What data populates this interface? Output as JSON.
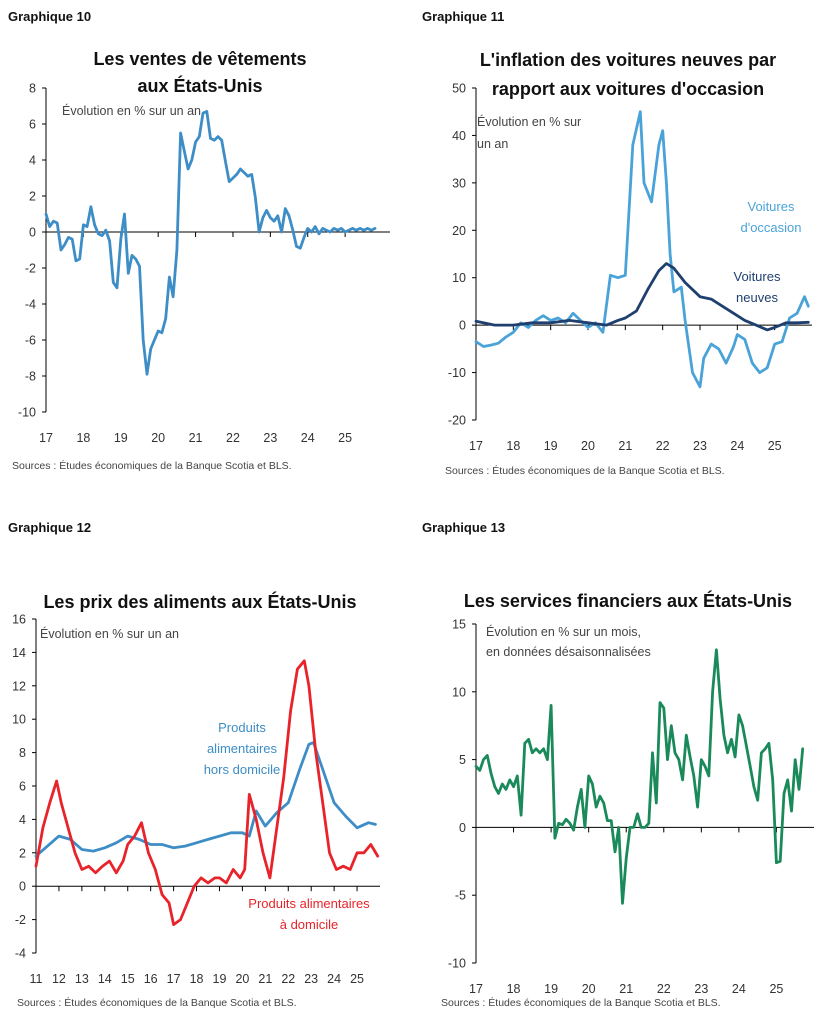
{
  "chart_data": [
    {
      "id": "g10",
      "type": "line",
      "number": "Graphique 10",
      "title": [
        "Les ventes de vêtements",
        "aux États-Unis"
      ],
      "note": [
        "Évolution en % sur un an"
      ],
      "source": "Sources : Études économiques de la Banque Scotia et BLS.",
      "ylim": [
        -10,
        8
      ],
      "yticks": [
        8,
        6,
        4,
        2,
        0,
        -2,
        -4,
        -6,
        -8,
        -10
      ],
      "xlim": [
        2017,
        2026.2
      ],
      "xticks": [
        "17",
        "18",
        "19",
        "20",
        "21",
        "22",
        "23",
        "24",
        "25"
      ],
      "series": [
        {
          "color": "#3d8dc6",
          "x": [
            2017.0,
            2017.1,
            2017.2,
            2017.3,
            2017.4,
            2017.5,
            2017.6,
            2017.7,
            2017.8,
            2017.9,
            2018.0,
            2018.1,
            2018.2,
            2018.3,
            2018.4,
            2018.5,
            2018.6,
            2018.7,
            2018.8,
            2018.9,
            2019.0,
            2019.1,
            2019.2,
            2019.3,
            2019.4,
            2019.5,
            2019.6,
            2019.7,
            2019.8,
            2019.9,
            2020.0,
            2020.1,
            2020.2,
            2020.3,
            2020.4,
            2020.5,
            2020.6,
            2020.7,
            2020.8,
            2020.9,
            2021.0,
            2021.1,
            2021.2,
            2021.3,
            2021.4,
            2021.5,
            2021.6,
            2021.7,
            2021.8,
            2021.9,
            2022.0,
            2022.1,
            2022.2,
            2022.3,
            2022.4,
            2022.5,
            2022.6,
            2022.7,
            2022.8,
            2022.9,
            2023.0,
            2023.1,
            2023.2,
            2023.3,
            2023.4,
            2023.5,
            2023.6,
            2023.7,
            2023.8,
            2023.9,
            2024.0,
            2024.1,
            2024.2,
            2024.3,
            2024.4,
            2024.5,
            2024.6,
            2024.7,
            2024.8,
            2024.9,
            2025.0,
            2025.1,
            2025.2,
            2025.3,
            2025.4,
            2025.5,
            2025.6,
            2025.7,
            2025.8
          ],
          "values": [
            1.0,
            0.3,
            0.6,
            0.5,
            -1.0,
            -0.7,
            -0.3,
            -0.4,
            -1.6,
            -1.5,
            0.4,
            0.3,
            1.4,
            0.4,
            -0.1,
            -0.2,
            0.1,
            -0.5,
            -2.8,
            -3.1,
            -0.4,
            1.0,
            -2.3,
            -1.3,
            -1.5,
            -1.9,
            -6.0,
            -7.9,
            -6.5,
            -6.0,
            -5.5,
            -5.6,
            -4.8,
            -2.5,
            -3.6,
            -1.0,
            5.5,
            4.5,
            3.5,
            4.0,
            5.0,
            5.3,
            6.6,
            6.7,
            5.2,
            5.1,
            5.3,
            5.1,
            3.9,
            2.8,
            3.0,
            3.2,
            3.5,
            3.3,
            3.1,
            3.2,
            1.9,
            0.0,
            0.8,
            1.2,
            0.8,
            0.6,
            0.9,
            0.0,
            1.3,
            0.9,
            0.1,
            -0.8,
            -0.9,
            -0.3,
            0.2,
            0.0,
            0.3,
            -0.1,
            0.2,
            0.1,
            0.0,
            0.2,
            0.1,
            0.2,
            0.0,
            0.1,
            0.2,
            0.1,
            0.2,
            0.1,
            0.2,
            0.1,
            0.2
          ]
        }
      ],
      "labels": []
    },
    {
      "id": "g11",
      "type": "line",
      "number": "Graphique 11",
      "title": [
        "L'inflation des voitures neuves par",
        "rapport aux voitures d'occasion"
      ],
      "note": [
        "Évolution en % sur",
        "un an"
      ],
      "source": "Sources : Études économiques de la Banque Scotia et BLS.",
      "ylim": [
        -20,
        50
      ],
      "yticks": [
        50,
        40,
        30,
        20,
        10,
        0,
        -10,
        -20
      ],
      "xlim": [
        2017,
        2026.0
      ],
      "xticks": [
        "17",
        "18",
        "19",
        "20",
        "21",
        "22",
        "23",
        "24",
        "25"
      ],
      "series": [
        {
          "name": "Voitures d'occasion",
          "color": "#4aa3d8",
          "x": [
            2017.0,
            2017.2,
            2017.4,
            2017.6,
            2017.8,
            2018.0,
            2018.2,
            2018.4,
            2018.6,
            2018.8,
            2019.0,
            2019.2,
            2019.4,
            2019.6,
            2019.8,
            2020.0,
            2020.2,
            2020.4,
            2020.6,
            2020.8,
            2021.0,
            2021.2,
            2021.4,
            2021.5,
            2021.7,
            2021.9,
            2022.0,
            2022.1,
            2022.2,
            2022.3,
            2022.5,
            2022.6,
            2022.8,
            2023.0,
            2023.1,
            2023.3,
            2023.5,
            2023.7,
            2023.9,
            2024.0,
            2024.2,
            2024.4,
            2024.6,
            2024.8,
            2025.0,
            2025.2,
            2025.4,
            2025.6,
            2025.8,
            2025.9
          ],
          "values": [
            -3.5,
            -4.5,
            -4.2,
            -3.8,
            -2.5,
            -1.5,
            0.5,
            -0.5,
            1.0,
            2.0,
            1.0,
            1.5,
            0.5,
            2.5,
            1.0,
            -0.5,
            0.5,
            -1.5,
            10.5,
            10.0,
            10.5,
            38.0,
            45.0,
            30.0,
            26.0,
            38.0,
            41.0,
            30.0,
            15.0,
            7.0,
            8.0,
            1.0,
            -10.0,
            -13.0,
            -7.0,
            -4.0,
            -5.0,
            -8.0,
            -4.5,
            -2.0,
            -3.0,
            -8.0,
            -10.0,
            -9.0,
            -4.0,
            -3.5,
            1.5,
            2.5,
            6.0,
            4.0
          ]
        },
        {
          "name": "Voitures neuves",
          "color": "#1f3f6e",
          "x": [
            2017.0,
            2017.5,
            2018.0,
            2018.5,
            2019.0,
            2019.5,
            2020.0,
            2020.5,
            2020.8,
            2021.0,
            2021.3,
            2021.6,
            2021.9,
            2022.1,
            2022.3,
            2022.6,
            2023.0,
            2023.3,
            2023.6,
            2023.9,
            2024.2,
            2024.5,
            2024.8,
            2025.0,
            2025.3,
            2025.6,
            2025.9
          ],
          "values": [
            0.8,
            0.0,
            0.0,
            0.5,
            0.5,
            1.0,
            0.5,
            0.0,
            1.0,
            1.5,
            3.0,
            7.5,
            11.5,
            13.0,
            12.0,
            9.0,
            6.0,
            5.5,
            4.0,
            2.5,
            1.0,
            0.0,
            -1.0,
            -0.5,
            0.5,
            0.5,
            0.6
          ]
        }
      ],
      "labels": [
        {
          "lines": [
            "Voitures",
            "d'occasion"
          ],
          "color": "#4aa3d8"
        },
        {
          "lines": [
            "Voitures",
            "neuves"
          ],
          "color": "#1f3f6e"
        }
      ]
    },
    {
      "id": "g12",
      "type": "line",
      "number": "Graphique 12",
      "title": [
        "Les prix des aliments aux États-Unis"
      ],
      "note": [
        "Évolution en % sur un an"
      ],
      "source": "Sources : Études économiques de la Banque Scotia et BLS.",
      "ylim": [
        -4,
        16
      ],
      "yticks": [
        16,
        14,
        12,
        10,
        8,
        6,
        4,
        2,
        0,
        -2,
        -4
      ],
      "xlim": [
        2011,
        2026.0
      ],
      "xticks": [
        "11",
        "12",
        "13",
        "14",
        "15",
        "16",
        "17",
        "18",
        "19",
        "20",
        "21",
        "22",
        "23",
        "24",
        "25"
      ],
      "series": [
        {
          "name": "Produits alimentaires hors domicile",
          "color": "#3d8dc6",
          "x": [
            2011.0,
            2011.5,
            2012.0,
            2012.5,
            2013.0,
            2013.5,
            2014.0,
            2014.5,
            2015.0,
            2015.5,
            2016.0,
            2016.5,
            2017.0,
            2017.5,
            2018.0,
            2018.5,
            2019.0,
            2019.5,
            2020.0,
            2020.3,
            2020.6,
            2021.0,
            2021.5,
            2022.0,
            2022.5,
            2022.9,
            2023.1,
            2023.5,
            2024.0,
            2024.5,
            2025.0,
            2025.5,
            2025.8
          ],
          "values": [
            1.8,
            2.4,
            3.0,
            2.8,
            2.2,
            2.1,
            2.3,
            2.6,
            3.0,
            2.8,
            2.5,
            2.5,
            2.3,
            2.4,
            2.6,
            2.8,
            3.0,
            3.2,
            3.2,
            3.0,
            4.5,
            3.6,
            4.4,
            5.0,
            7.0,
            8.5,
            8.6,
            7.0,
            5.0,
            4.2,
            3.5,
            3.8,
            3.7
          ]
        },
        {
          "name": "Produits alimentaires à domicile",
          "color": "#e8232a",
          "x": [
            2011.0,
            2011.3,
            2011.6,
            2011.9,
            2012.1,
            2012.4,
            2012.7,
            2013.0,
            2013.3,
            2013.6,
            2013.9,
            2014.2,
            2014.5,
            2014.8,
            2015.0,
            2015.3,
            2015.6,
            2015.9,
            2016.2,
            2016.5,
            2016.8,
            2017.0,
            2017.3,
            2017.6,
            2017.9,
            2018.2,
            2018.5,
            2018.8,
            2019.0,
            2019.3,
            2019.6,
            2019.9,
            2020.1,
            2020.3,
            2020.6,
            2020.9,
            2021.2,
            2021.5,
            2021.8,
            2022.1,
            2022.4,
            2022.7,
            2022.9,
            2023.2,
            2023.5,
            2023.8,
            2024.1,
            2024.4,
            2024.7,
            2025.0,
            2025.3,
            2025.6,
            2025.9
          ],
          "values": [
            1.2,
            3.5,
            5.0,
            6.3,
            5.0,
            3.5,
            2.0,
            1.0,
            1.2,
            0.8,
            1.2,
            1.5,
            0.8,
            1.5,
            2.5,
            3.0,
            3.8,
            2.0,
            1.0,
            -0.5,
            -1.0,
            -2.3,
            -2.0,
            -1.0,
            0.0,
            0.5,
            0.2,
            0.5,
            0.5,
            0.2,
            1.0,
            0.5,
            1.0,
            5.5,
            4.0,
            2.0,
            0.5,
            3.5,
            6.5,
            10.5,
            13.0,
            13.5,
            12.0,
            8.0,
            5.0,
            2.0,
            1.0,
            1.2,
            1.0,
            2.0,
            2.0,
            2.5,
            1.8
          ]
        }
      ],
      "labels": [
        {
          "lines": [
            "Produits",
            "alimentaires",
            "hors domicile"
          ],
          "color": "#3d8dc6"
        },
        {
          "lines": [
            "Produits alimentaires",
            "à domicile"
          ],
          "color": "#e8232a"
        }
      ]
    },
    {
      "id": "g13",
      "type": "line",
      "number": "Graphique 13",
      "title": [
        "Les services financiers aux États-Unis"
      ],
      "note": [
        "Évolution en % sur un mois,",
        "en données désaisonnalisées"
      ],
      "source": "Sources : Études économiques de la Banque Scotia et BLS.",
      "ylim": [
        -10,
        15
      ],
      "yticks": [
        15,
        10,
        5,
        0,
        -5,
        -10
      ],
      "xlim": [
        2017,
        2026.0
      ],
      "xticks": [
        "17",
        "18",
        "19",
        "20",
        "21",
        "22",
        "23",
        "24",
        "25"
      ],
      "series": [
        {
          "color": "#1a8a5a",
          "x": [
            2017.0,
            2017.1,
            2017.2,
            2017.3,
            2017.4,
            2017.5,
            2017.6,
            2017.7,
            2017.8,
            2017.9,
            2018.0,
            2018.1,
            2018.2,
            2018.3,
            2018.4,
            2018.5,
            2018.6,
            2018.7,
            2018.8,
            2018.9,
            2019.0,
            2019.1,
            2019.2,
            2019.3,
            2019.4,
            2019.5,
            2019.6,
            2019.7,
            2019.8,
            2019.9,
            2020.0,
            2020.1,
            2020.2,
            2020.3,
            2020.4,
            2020.5,
            2020.6,
            2020.7,
            2020.8,
            2020.9,
            2021.0,
            2021.1,
            2021.2,
            2021.3,
            2021.4,
            2021.5,
            2021.6,
            2021.7,
            2021.8,
            2021.9,
            2022.0,
            2022.1,
            2022.2,
            2022.3,
            2022.4,
            2022.5,
            2022.6,
            2022.7,
            2022.8,
            2022.9,
            2023.0,
            2023.1,
            2023.2,
            2023.3,
            2023.4,
            2023.5,
            2023.6,
            2023.7,
            2023.8,
            2023.9,
            2024.0,
            2024.1,
            2024.2,
            2024.3,
            2024.4,
            2024.5,
            2024.6,
            2024.7,
            2024.8,
            2024.9,
            2025.0,
            2025.1,
            2025.2,
            2025.3,
            2025.4,
            2025.5,
            2025.6,
            2025.7
          ],
          "values": [
            4.5,
            4.2,
            5.0,
            5.3,
            4.0,
            3.0,
            2.5,
            3.2,
            2.8,
            3.5,
            3.0,
            3.8,
            0.9,
            6.2,
            6.5,
            5.5,
            5.8,
            5.5,
            5.8,
            5.0,
            9.0,
            -0.8,
            0.3,
            0.2,
            0.6,
            0.3,
            -0.2,
            1.5,
            2.8,
            0.0,
            3.8,
            3.2,
            1.5,
            2.3,
            1.8,
            0.5,
            0.5,
            -1.8,
            0.0,
            -5.6,
            -2.3,
            0.0,
            0.0,
            1.0,
            0.0,
            0.0,
            0.3,
            5.5,
            1.8,
            9.2,
            8.8,
            5.0,
            7.5,
            5.5,
            5.0,
            3.5,
            6.8,
            5.2,
            3.8,
            1.5,
            5.0,
            4.5,
            3.8,
            10.0,
            13.1,
            9.5,
            6.8,
            5.5,
            6.5,
            5.2,
            8.3,
            7.5,
            6.0,
            4.5,
            3.0,
            2.0,
            5.5,
            5.8,
            6.2,
            3.5,
            -2.6,
            -2.5,
            2.5,
            3.5,
            1.2,
            5.0,
            2.8,
            5.8
          ]
        }
      ],
      "labels": []
    }
  ]
}
